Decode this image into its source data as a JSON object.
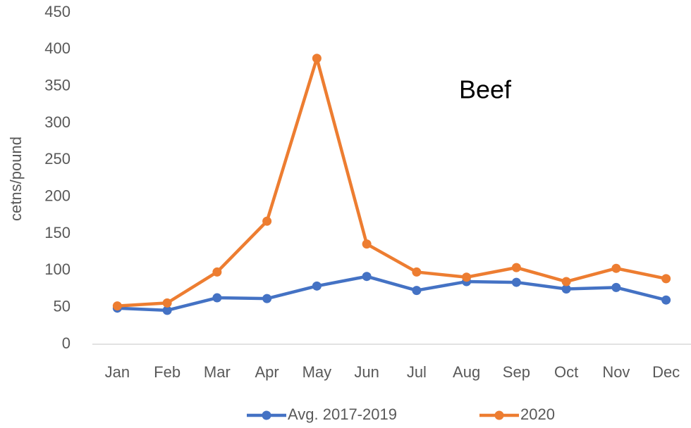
{
  "chart_data": {
    "type": "line",
    "annotation": "Beef",
    "y_label": "cetns/pound",
    "categories": [
      "Jan",
      "Feb",
      "Mar",
      "Apr",
      "May",
      "Jun",
      "Jul",
      "Aug",
      "Sep",
      "Oct",
      "Nov",
      "Dec"
    ],
    "series": [
      {
        "name": "Avg. 2017-2019",
        "color": "#4472c4",
        "values": [
          49,
          46,
          63,
          62,
          79,
          92,
          73,
          85,
          84,
          75,
          77,
          60
        ]
      },
      {
        "name": "2020",
        "color": "#ed7d31",
        "values": [
          52,
          56,
          98,
          167,
          388,
          136,
          98,
          91,
          104,
          85,
          103,
          89
        ]
      }
    ],
    "ylim": [
      0,
      450
    ],
    "yticks": [
      0,
      50,
      100,
      150,
      200,
      250,
      300,
      350,
      400,
      450
    ],
    "grid": false,
    "legend": "bottom"
  }
}
